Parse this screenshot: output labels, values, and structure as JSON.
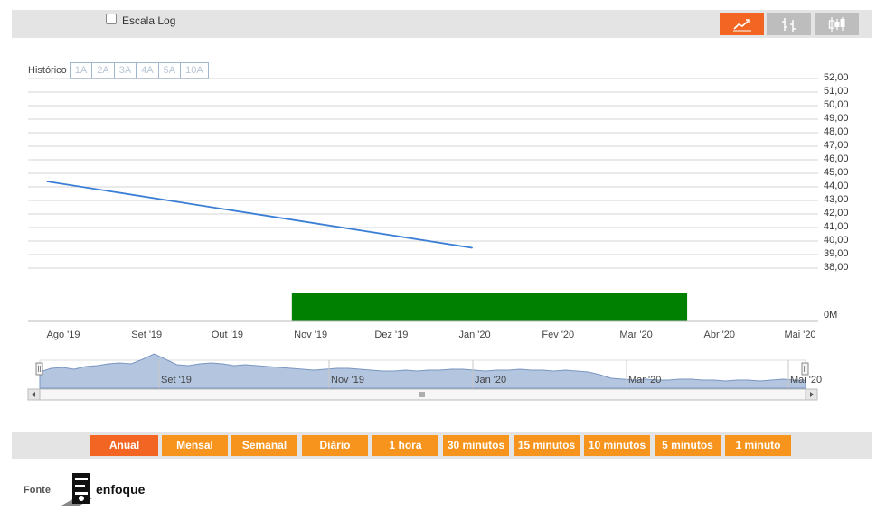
{
  "toolbar": {
    "log_scale_label": "Escala Log",
    "chart_types": [
      {
        "icon": "line-chart-icon",
        "active": true
      },
      {
        "icon": "ohlc-bars-icon",
        "active": false
      },
      {
        "icon": "candlestick-icon",
        "active": false
      }
    ]
  },
  "history": {
    "label": "Histórico",
    "periods": [
      "1A",
      "2A",
      "3A",
      "4A",
      "5A",
      "10A"
    ]
  },
  "chart_data": {
    "type": "line",
    "x_ticks": [
      "Ago '19",
      "Set '19",
      "Out '19",
      "Nov '19",
      "Dez '19",
      "Jan '20",
      "Fev '20",
      "Mar '20",
      "Abr '20",
      "Mai '20"
    ],
    "y_ticks": [
      "52,00",
      "51,00",
      "50,00",
      "49,00",
      "48,00",
      "47,00",
      "46,00",
      "45,00",
      "44,00",
      "43,00",
      "42,00",
      "41,00",
      "40,00",
      "39,00",
      "38,00"
    ],
    "ylim": [
      38,
      52
    ],
    "grid": true,
    "series": [
      {
        "color": "#3a7fd5",
        "points": [
          {
            "x": "2019-07-26",
            "y": 44.4
          },
          {
            "x": "2019-12-31",
            "y": 39.5
          }
        ]
      }
    ],
    "volume": {
      "label": "0M",
      "color": "#008000",
      "bars": [
        {
          "from": "2019-10-25",
          "to": "2020-03-20"
        }
      ]
    },
    "navigator_ticks": [
      "Set '19",
      "Nov '19",
      "Jan '20",
      "Mar '20",
      "Mai '20"
    ]
  },
  "periods": {
    "items": [
      "Anual",
      "Mensal",
      "Semanal",
      "Diário",
      "1 hora",
      "30 minutos",
      "15 minutos",
      "10 minutos",
      "5 minutos",
      "1 minuto"
    ],
    "active": "Anual"
  },
  "footer": {
    "source_label": "Fonte",
    "logo_text": "enfoque"
  },
  "colors": {
    "accent": "#f26522",
    "button": "#f7941d",
    "line": "#3a7fd5",
    "volume": "#008000",
    "navigator_fill": "#b3c5df"
  }
}
